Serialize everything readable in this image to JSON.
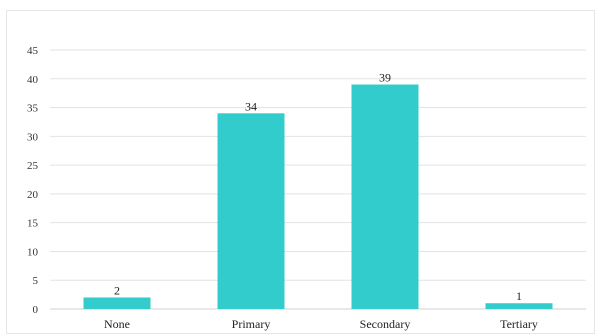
{
  "chart_data": {
    "type": "bar",
    "categories": [
      "None",
      "Primary",
      "Secondary",
      "Tertiary"
    ],
    "values": [
      2,
      34,
      39,
      1
    ],
    "data_labels": [
      "2",
      "34",
      "39",
      "1"
    ],
    "title": "",
    "xlabel": "",
    "ylabel": "",
    "ylim": [
      0,
      45
    ],
    "y_ticks": [
      0,
      5,
      10,
      15,
      20,
      25,
      30,
      35,
      40,
      45
    ],
    "grid": true,
    "legend": "none",
    "colors": {
      "bar": "#33cccc",
      "grid": "#e3e3e3",
      "axis": "#d0d0d0"
    }
  }
}
